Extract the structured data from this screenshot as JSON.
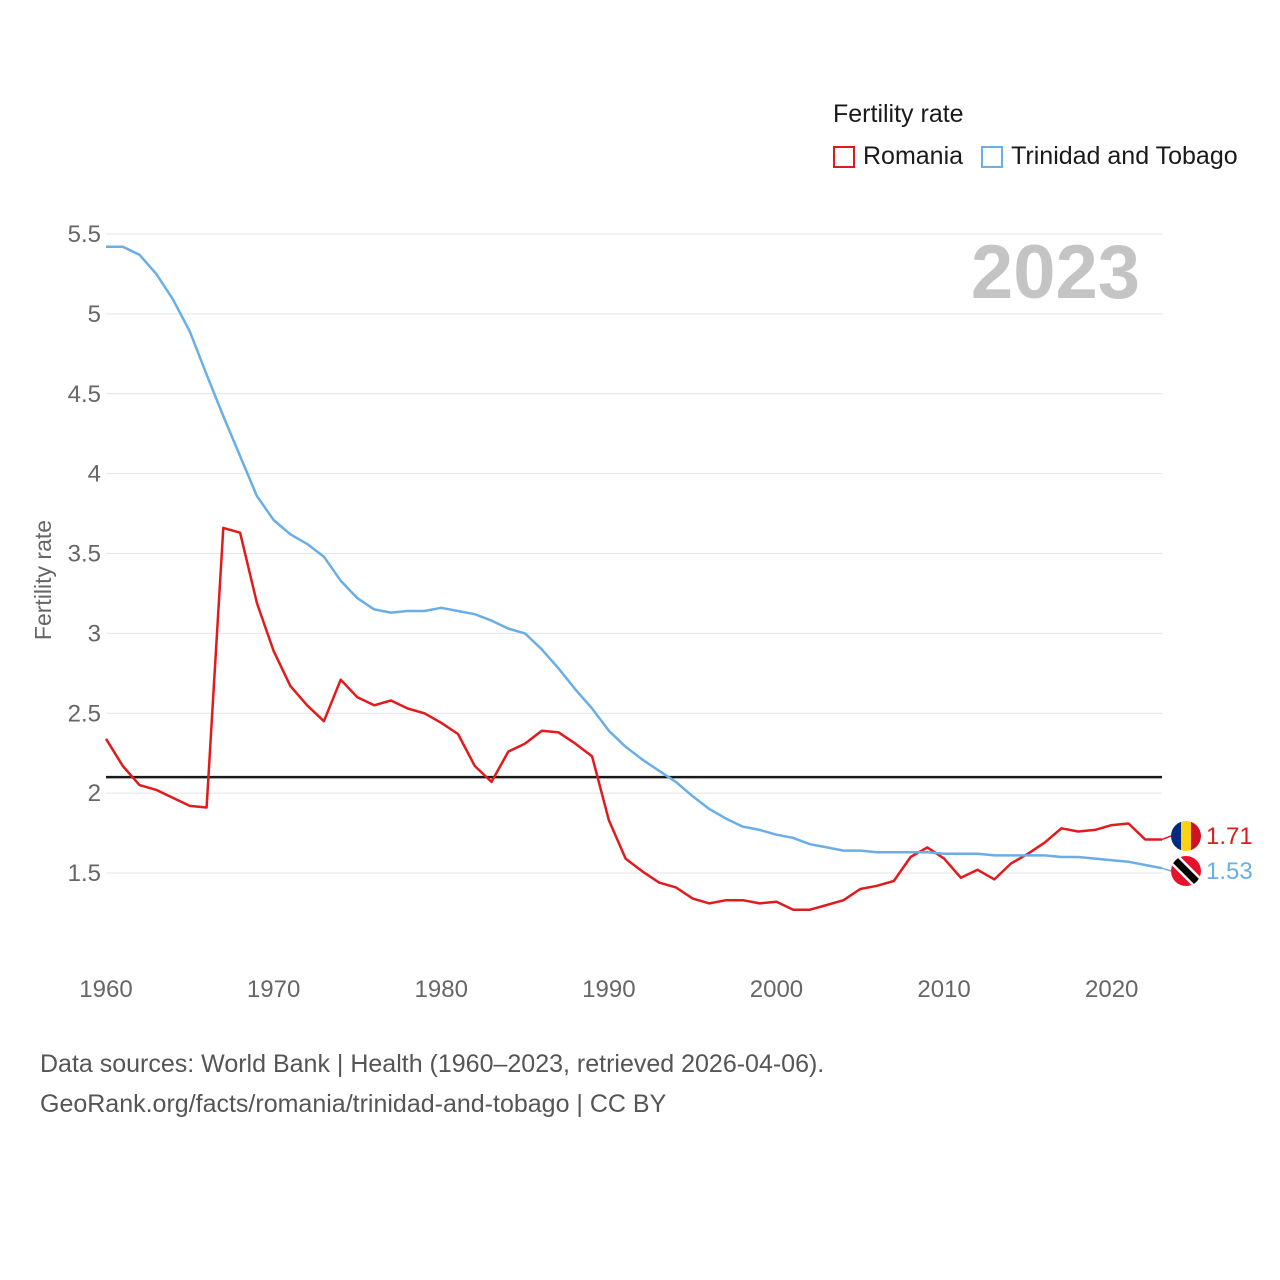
{
  "legend": {
    "title": "Fertility rate",
    "items": [
      {
        "name": "Romania",
        "color": "#e31a1c"
      },
      {
        "name": "Trinidad and Tobago",
        "color": "#6aaee8"
      }
    ]
  },
  "footer": {
    "line1": "Data sources: World Bank | Health (1960–2023, retrieved 2026-04-06).",
    "line2": "GeoRank.org/facts/romania/trinidad-and-tobago | CC BY"
  },
  "chart_data": {
    "type": "line",
    "year_label": "2023",
    "ylabel": "Fertility rate",
    "xlim": [
      1960,
      2023
    ],
    "ylim": [
      1.0,
      5.5
    ],
    "yticks": [
      1.5,
      2,
      2.5,
      3,
      3.5,
      4,
      4.5,
      5,
      5.5
    ],
    "xticks": [
      1960,
      1970,
      1980,
      1990,
      2000,
      2010,
      2020
    ],
    "reference_line": {
      "y": 2.1,
      "color": "#1a1a1a"
    },
    "x": [
      1960,
      1961,
      1962,
      1963,
      1964,
      1965,
      1966,
      1967,
      1968,
      1969,
      1970,
      1971,
      1972,
      1973,
      1974,
      1975,
      1976,
      1977,
      1978,
      1979,
      1980,
      1981,
      1982,
      1983,
      1984,
      1985,
      1986,
      1987,
      1988,
      1989,
      1990,
      1991,
      1992,
      1993,
      1994,
      1995,
      1996,
      1997,
      1998,
      1999,
      2000,
      2001,
      2002,
      2003,
      2004,
      2005,
      2006,
      2007,
      2008,
      2009,
      2010,
      2011,
      2012,
      2013,
      2014,
      2015,
      2016,
      2017,
      2018,
      2019,
      2020,
      2021,
      2022,
      2023
    ],
    "series": [
      {
        "name": "Romania",
        "color": "#e31a1c",
        "end_label": "1.71",
        "values": [
          2.34,
          2.17,
          2.05,
          2.02,
          1.97,
          1.92,
          1.91,
          3.66,
          3.63,
          3.19,
          2.89,
          2.67,
          2.55,
          2.45,
          2.71,
          2.6,
          2.55,
          2.58,
          2.53,
          2.5,
          2.44,
          2.37,
          2.17,
          2.07,
          2.26,
          2.31,
          2.39,
          2.38,
          2.31,
          2.23,
          1.83,
          1.59,
          1.51,
          1.44,
          1.41,
          1.34,
          1.31,
          1.33,
          1.33,
          1.31,
          1.32,
          1.27,
          1.27,
          1.3,
          1.33,
          1.4,
          1.42,
          1.45,
          1.6,
          1.66,
          1.59,
          1.47,
          1.52,
          1.46,
          1.56,
          1.62,
          1.69,
          1.78,
          1.76,
          1.77,
          1.8,
          1.81,
          1.71,
          1.71
        ]
      },
      {
        "name": "Trinidad and Tobago",
        "color": "#6aaee8",
        "end_label": "1.53",
        "values": [
          5.42,
          5.42,
          5.37,
          5.25,
          5.09,
          4.89,
          4.62,
          4.36,
          4.11,
          3.86,
          3.71,
          3.62,
          3.56,
          3.48,
          3.33,
          3.22,
          3.15,
          3.13,
          3.14,
          3.14,
          3.16,
          3.14,
          3.12,
          3.08,
          3.03,
          3.0,
          2.9,
          2.78,
          2.65,
          2.53,
          2.39,
          2.29,
          2.21,
          2.14,
          2.07,
          1.98,
          1.9,
          1.84,
          1.79,
          1.77,
          1.74,
          1.72,
          1.68,
          1.66,
          1.64,
          1.64,
          1.63,
          1.63,
          1.63,
          1.63,
          1.62,
          1.62,
          1.62,
          1.61,
          1.61,
          1.61,
          1.61,
          1.6,
          1.6,
          1.59,
          1.58,
          1.57,
          1.55,
          1.53
        ]
      }
    ]
  }
}
